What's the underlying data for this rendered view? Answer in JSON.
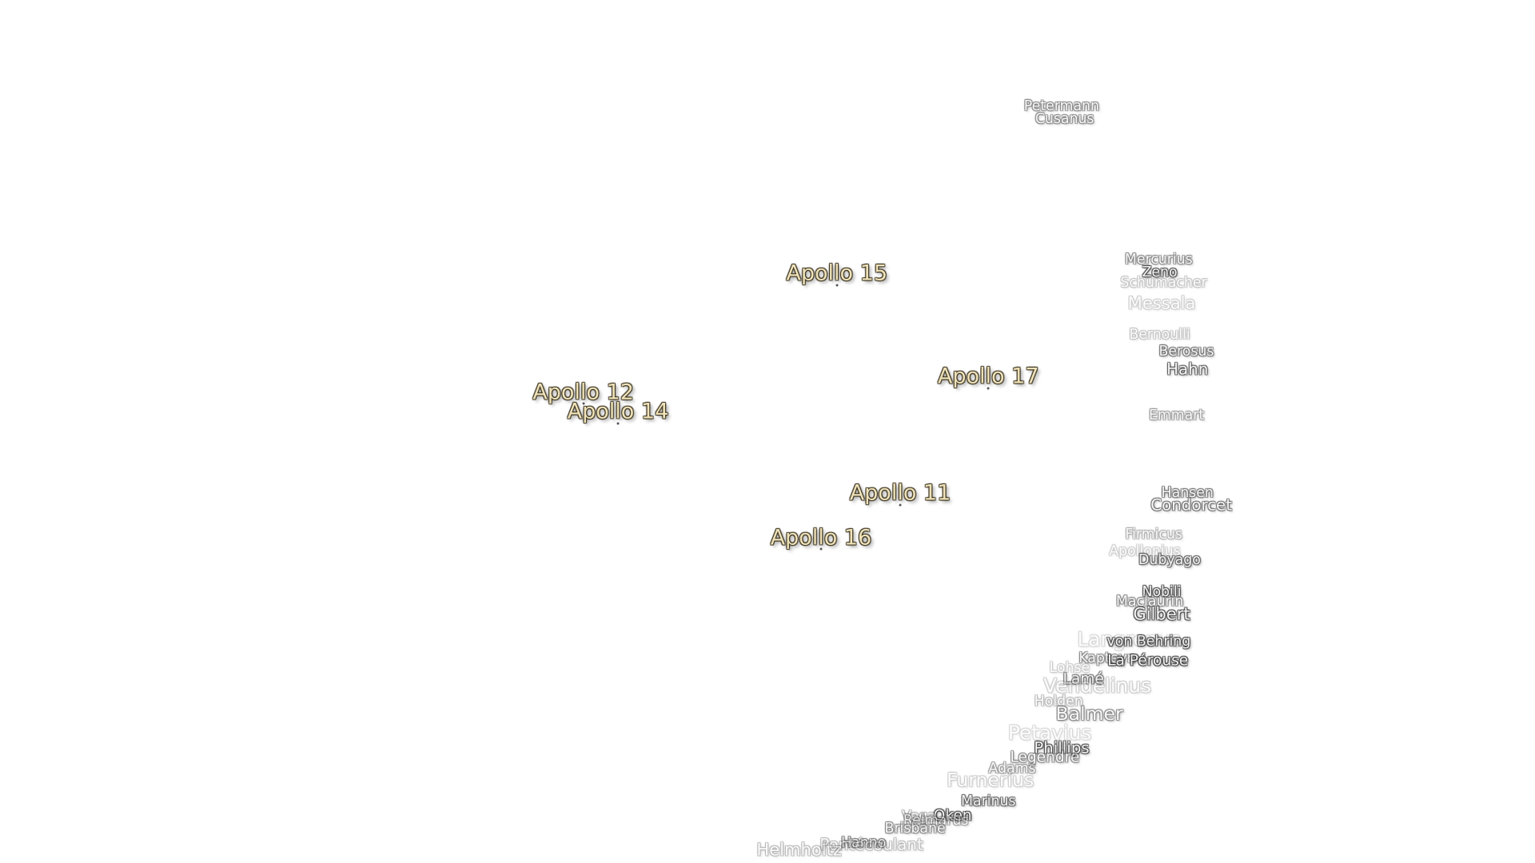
{
  "sites": [
    "Apollo 15",
    "Apollo 17",
    "Apollo 12",
    "Apollo 14",
    "Apollo 11",
    "Apollo 16"
  ],
  "craters": [
    "Petermann",
    "Cusanus",
    "Mercurius",
    "Zeno",
    "Schumacher",
    "Messala",
    "Bernoulli",
    "Berosus",
    "Hahn",
    "Emmart",
    "Hansen",
    "Condorcet",
    "Firmicus",
    "Apollonius",
    "Dubyago",
    "Nobili",
    "Maclaurin",
    "Gilbert",
    "Langrenus",
    "von Behring",
    "Kapteyn",
    "La Pérouse",
    "Lohse",
    "Lamé",
    "Vendelinus",
    "Holden",
    "Balmer",
    "Petavius",
    "Phillips",
    "Legendre",
    "Adams",
    "Furnerius",
    "Marinus",
    "Oken",
    "Vega",
    "Reimarus",
    "Brisbane",
    "Hanno",
    "Pontécoulant",
    "Helmholtz"
  ]
}
